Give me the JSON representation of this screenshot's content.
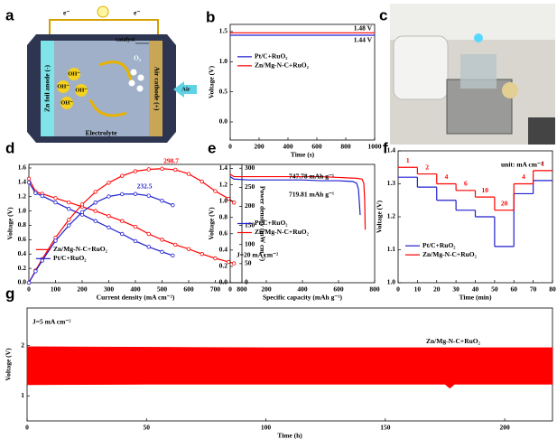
{
  "schematic": {
    "panel": "a",
    "electron_left": "e⁻",
    "electron_right": "e⁻",
    "catalyst": "catalyst",
    "anode": "Zn foil anode (-)",
    "cathode": "Air cathode (+)",
    "hydroxide": [
      "OH⁻",
      "OH⁻",
      "OH⁻",
      "OH⁻"
    ],
    "oxygen": "O₂",
    "air": "Air",
    "electrolyte": "Electrolyte"
  },
  "photo": {
    "panel": "c"
  },
  "chart_data": [
    {
      "type": "line",
      "panel": "b",
      "xlabel": "Time (s)",
      "ylabel": "Voltage (V)",
      "xlim": [
        0,
        1000
      ],
      "xticks": [
        0,
        200,
        400,
        600,
        800,
        1000
      ],
      "ylim": [
        -0.3,
        1.62
      ],
      "yticks": [
        {
          "value": 0,
          "label": "0.0"
        },
        0.5,
        {
          "value": 1,
          "label": "1.0"
        },
        1.5
      ],
      "series": [
        {
          "name": "Pt/C+RuO₂",
          "color": "#1f1fd0",
          "x": [
            0,
            1000
          ],
          "values": [
            1.44,
            1.44
          ]
        },
        {
          "name": "Zn/Mg-N-C+RuO₂",
          "color": "#ff0000",
          "x": [
            0,
            1000
          ],
          "values": [
            1.48,
            1.48
          ]
        }
      ],
      "annotations": [
        "1.48 V",
        "1.44 V"
      ],
      "legend": "upper left"
    },
    {
      "type": "line",
      "panel": "d",
      "xlabel": "Current density (mA cm⁻²)",
      "ylabel": "Voltage (V)",
      "y2label": "Power density (mW cm⁻²)",
      "xlim": [
        0,
        800
      ],
      "xticks": [
        0,
        100,
        200,
        300,
        400,
        500,
        600,
        700,
        800
      ],
      "ylim": [
        0,
        1.65
      ],
      "yticks": [
        {
          "value": 0,
          "label": "0.0"
        },
        0.2,
        0.4,
        0.6,
        0.8,
        {
          "value": 1,
          "label": "1.0"
        },
        1.2,
        1.4,
        1.6
      ],
      "y2lim": [
        0,
        310
      ],
      "y2ticks": [
        0,
        50,
        100,
        150,
        200,
        250,
        300
      ],
      "series": [
        {
          "name": "Zn/Mg-N-C+RuO₂",
          "color": "#ff0000",
          "marker": "circle",
          "x": [
            0,
            25,
            50,
            100,
            150,
            200,
            250,
            300,
            350,
            400,
            450,
            500,
            550,
            600,
            650,
            700,
            750,
            770
          ],
          "values": [
            1.45,
            1.27,
            1.24,
            1.18,
            1.12,
            1.06,
            1.0,
            0.93,
            0.86,
            0.78,
            0.68,
            0.6,
            0.53,
            0.47,
            0.4,
            0.34,
            0.29,
            0.27
          ]
        },
        {
          "name": "Pt/C+RuO₂",
          "color": "#1f1fd0",
          "marker": "circle",
          "x": [
            0,
            25,
            50,
            100,
            150,
            200,
            250,
            300,
            350,
            400,
            450,
            500,
            540
          ],
          "values": [
            1.4,
            1.25,
            1.21,
            1.12,
            1.03,
            0.95,
            0.86,
            0.77,
            0.68,
            0.58,
            0.5,
            0.43,
            0.38
          ]
        },
        {
          "color": "#ff0000",
          "marker": "circle",
          "axis": "y2",
          "x": [
            0,
            25,
            50,
            100,
            150,
            200,
            250,
            300,
            350,
            400,
            450,
            500,
            550,
            600,
            650,
            700,
            750,
            770
          ],
          "values": [
            0,
            32,
            62,
            118,
            165,
            205,
            238,
            262,
            280,
            292,
            297,
            298.7,
            296,
            285,
            265,
            240,
            220,
            210
          ]
        },
        {
          "color": "#1f1fd0",
          "marker": "circle",
          "axis": "y2",
          "x": [
            0,
            25,
            50,
            100,
            150,
            200,
            250,
            300,
            350,
            400,
            450,
            500,
            540
          ],
          "values": [
            0,
            30,
            58,
            110,
            150,
            185,
            210,
            226,
            232,
            232.5,
            228,
            215,
            203
          ]
        }
      ],
      "legend": "lower left"
    },
    {
      "type": "line",
      "panel": "e",
      "xlabel": "Specific capacity (mAh g⁻¹)",
      "ylabel": "Voltage (V)",
      "xlim": [
        0,
        800
      ],
      "xticks": [
        0,
        200,
        400,
        600,
        800
      ],
      "ylim": [
        0,
        1.45
      ],
      "yticks": [
        {
          "value": 0,
          "label": "0.0"
        },
        0.2,
        0.4,
        0.6,
        0.8,
        {
          "value": 1,
          "label": "1.0"
        },
        1.2,
        1.4
      ],
      "series": [
        {
          "name": "Pt/C+RuO₂",
          "color": "#1f1fd0",
          "x": [
            0,
            20,
            100,
            200,
            300,
            400,
            500,
            600,
            680,
            700,
            710,
            715,
            719.81
          ],
          "values": [
            1.3,
            1.27,
            1.26,
            1.26,
            1.26,
            1.26,
            1.25,
            1.25,
            1.24,
            1.22,
            1.15,
            1.0,
            0.83
          ]
        },
        {
          "name": "Zn/Mg-N-C+RuO₂",
          "color": "#ff0000",
          "x": [
            0,
            20,
            100,
            200,
            300,
            400,
            500,
            600,
            700,
            730,
            740,
            745,
            747.78
          ],
          "values": [
            1.33,
            1.3,
            1.3,
            1.3,
            1.3,
            1.3,
            1.3,
            1.29,
            1.28,
            1.27,
            1.22,
            1.0,
            0.65
          ]
        }
      ],
      "annotations": [
        "747.78 mAh g⁻¹",
        "719.81 mAh g⁻¹",
        "J=20 mA cm⁻²"
      ],
      "legend": "center left"
    },
    {
      "type": "step",
      "panel": "f",
      "xlabel": "Time (min)",
      "ylabel": "Voltage (V)",
      "xlim": [
        0,
        80
      ],
      "xticks": [
        0,
        10,
        20,
        30,
        40,
        50,
        60,
        70,
        80
      ],
      "ylim": [
        1.0,
        1.4
      ],
      "yticks": [
        {
          "value": 1,
          "label": "1.0"
        },
        1.1,
        1.2,
        1.3,
        1.4
      ],
      "series": [
        {
          "name": "Pt/C+RuO₂",
          "color": "#1f1fd0",
          "x": [
            0,
            10,
            20,
            30,
            40,
            50,
            60,
            70
          ],
          "values": [
            1.32,
            1.29,
            1.25,
            1.22,
            1.2,
            1.11,
            1.27,
            1.31
          ]
        },
        {
          "name": "Zn/Mg-N-C+RuO₂",
          "color": "#ff0000",
          "x": [
            0,
            10,
            20,
            30,
            40,
            50,
            60,
            70
          ],
          "values": [
            1.35,
            1.33,
            1.3,
            1.28,
            1.26,
            1.22,
            1.3,
            1.34
          ]
        }
      ],
      "currents": [
        1,
        2,
        4,
        6,
        10,
        20,
        4,
        1
      ],
      "annotations": [
        "unit: mA cm⁻²"
      ],
      "legend": "lower left"
    },
    {
      "type": "band",
      "panel": "g",
      "xlabel": "Time (h)",
      "ylabel": "Voltage (V)",
      "xlim": [
        0,
        220
      ],
      "xticks": [
        0,
        50,
        100,
        150,
        200
      ],
      "ylim": [
        0.5,
        2.75
      ],
      "yticks": [
        1,
        2
      ],
      "series": [
        {
          "name": "Zn/Mg-N-C+RuO₂",
          "color": "#ff0000",
          "x": [
            0,
            50,
            100,
            150,
            175,
            177,
            179,
            220
          ],
          "values": [
            1.98,
            1.97,
            1.96,
            1.96,
            1.96,
            1.96,
            1.96,
            1.96
          ],
          "low": [
            1.22,
            1.23,
            1.23,
            1.23,
            1.23,
            1.15,
            1.23,
            1.23
          ]
        }
      ],
      "annotations": [
        "J=5 mA cm⁻²"
      ],
      "legend": "upper right"
    }
  ]
}
